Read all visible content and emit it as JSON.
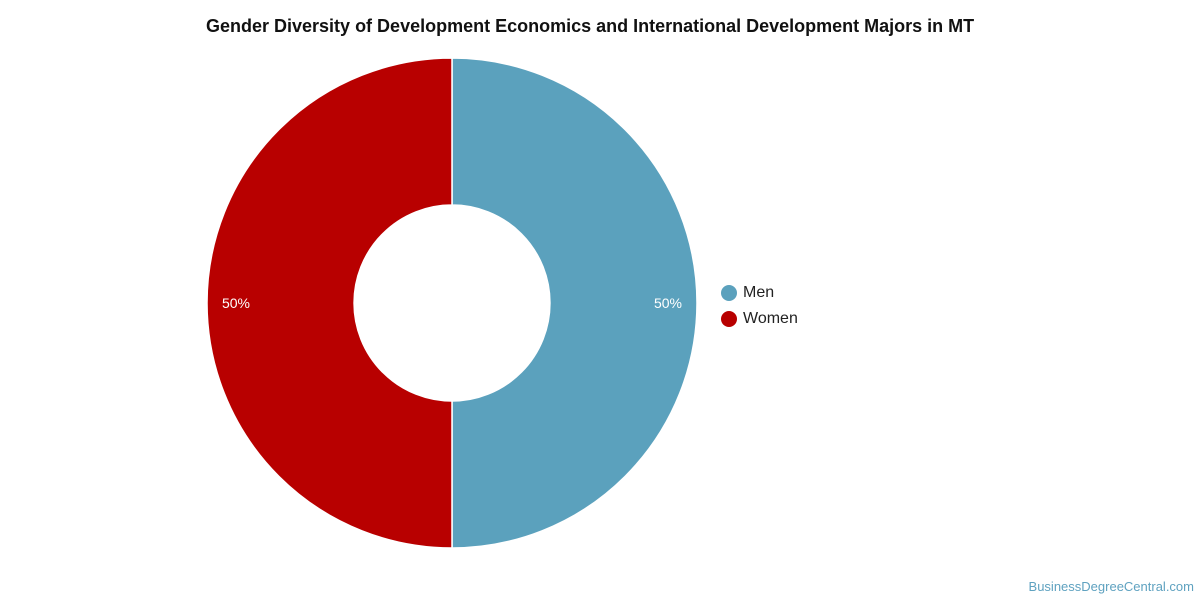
{
  "chart_data": {
    "type": "pie",
    "title": "Gender Diversity of Development Economics and International Development Majors in MT",
    "series": [
      {
        "name": "Men",
        "value": 50,
        "label": "50%",
        "color": "#5ba1bd"
      },
      {
        "name": "Women",
        "value": 50,
        "label": "50%",
        "color": "#b80000"
      }
    ],
    "legend_position": "right"
  },
  "credit": "BusinessDegreeCentral.com"
}
